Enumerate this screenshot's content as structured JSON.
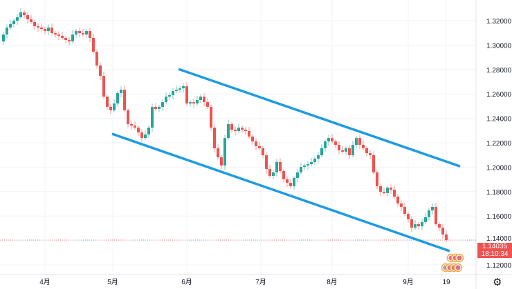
{
  "chart_data": {
    "type": "candlestick",
    "title": "",
    "x_tick_labels": [
      {
        "label": "4月",
        "index": 12
      },
      {
        "label": "5月",
        "index": 31.6
      },
      {
        "label": "6月",
        "index": 53
      },
      {
        "label": "7月",
        "index": 74.4
      },
      {
        "label": "8月",
        "index": 95
      },
      {
        "label": "9月",
        "index": 117
      },
      {
        "label": "19",
        "index": 128
      }
    ],
    "y_tick_labels": [
      "1.32000",
      "1.30000",
      "1.28000",
      "1.26000",
      "1.24000",
      "1.22000",
      "1.20000",
      "1.18000",
      "1.16000",
      "1.14000",
      "1.12000"
    ],
    "ylim": [
      1.1115,
      1.3345
    ],
    "first_open": 1.303,
    "closes": [
      1.3087,
      1.3144,
      1.3172,
      1.32,
      1.3228,
      1.3268,
      1.3245,
      1.3211,
      1.3189,
      1.3155,
      1.3144,
      1.3132,
      1.3115,
      1.3144,
      1.3098,
      1.3087,
      1.3076,
      1.3059,
      1.3042,
      1.3031,
      1.3087,
      1.3115,
      1.3098,
      1.3087,
      1.3115,
      1.3059,
      1.2946,
      1.2833,
      1.2748,
      1.2578,
      1.2494,
      1.2466,
      1.2522,
      1.2607,
      1.2635,
      1.2466,
      1.2353,
      1.2341,
      1.2324,
      1.2285,
      1.2239,
      1.2268,
      1.2324,
      1.2494,
      1.2477,
      1.2494,
      1.2533,
      1.2578,
      1.259,
      1.2624,
      1.2635,
      1.2646,
      1.2663,
      1.2522,
      1.2533,
      1.2522,
      1.255,
      1.2578,
      1.2533,
      1.2494,
      1.2324,
      1.2155,
      1.2081,
      1.2014,
      1.2239,
      1.2353,
      1.2307,
      1.2296,
      1.2324,
      1.2307,
      1.2296,
      1.2251,
      1.2211,
      1.2172,
      1.2155,
      1.2098,
      1.1985,
      1.1929,
      1.1957,
      1.2042,
      1.1968,
      1.1901,
      1.1872,
      1.1844,
      1.1912,
      1.1957,
      1.2002,
      1.2014,
      1.2025,
      1.2042,
      1.207,
      1.2098,
      1.2155,
      1.2211,
      1.2239,
      1.2211,
      1.2183,
      1.2138,
      1.2127,
      1.2155,
      1.2098,
      1.2183,
      1.2239,
      1.2183,
      1.2155,
      1.2115,
      1.2098,
      1.1957,
      1.1844,
      1.1799,
      1.1788,
      1.1833,
      1.1816,
      1.1759,
      1.1703,
      1.1675,
      1.1618,
      1.1573,
      1.1505,
      1.1533,
      1.1516,
      1.155,
      1.159,
      1.1646,
      1.1675,
      1.1533,
      1.1505,
      1.1449,
      1.14035
    ],
    "trendlines": [
      {
        "name": "upper-channel",
        "start": {
          "index": 50.6,
          "price": 1.2804
        },
        "end": {
          "index": 132,
          "price": 1.2007
        }
      },
      {
        "name": "lower-channel",
        "start": {
          "index": 31.4,
          "price": 1.2273
        },
        "end": {
          "index": 129,
          "price": 1.1313
        }
      }
    ],
    "grid": true,
    "colors": {
      "up": "#26a69a",
      "down": "#ef5350",
      "trendline": "#1e9be2",
      "grid": "#f0f3fa"
    }
  },
  "price_label": {
    "price": "1.14035",
    "countdown": "18:10:34",
    "color": "#ef5350"
  },
  "settings_icon": "gear-icon",
  "event_markers": [
    "gb-flag-icon",
    "us-flag-icon"
  ]
}
